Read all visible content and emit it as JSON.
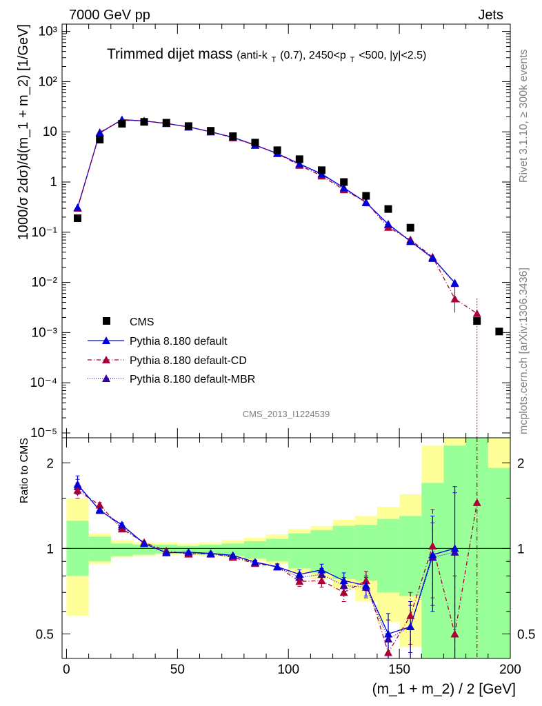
{
  "header": {
    "left": "7000 GeV pp",
    "right": "Jets",
    "side_top": "Rivet 3.1.10, ≥ 300k events",
    "side_bottom": "mcplots.cern.ch [arXiv:1306.3436]",
    "watermark": "CMS_2013_I1224539"
  },
  "colors": {
    "data": "#000000",
    "default": "#0000dd",
    "cd": "#aa0033",
    "mbr": "#3300aa",
    "band_inner": "#99ff99",
    "band_outer": "#ffff99"
  },
  "chart_data": [
    {
      "type": "scatter",
      "title_main": "Trimmed dijet mass",
      "title_sub": "(anti-k",
      "title_sub_T": "T",
      "title_sub_rest": "(0.7), 2450<p",
      "title_sub_T2": "T",
      "title_sub_end": "<500, |y|<2.5)",
      "ylabel": "1000/σ 2dσ)/d(m_1 + m_2) [1/GeV]",
      "yscale": "log",
      "ylim": [
        8e-06,
        1400
      ],
      "xlim": [
        -2,
        200
      ],
      "ytick_labels": [
        "10⁻⁵",
        "10⁻⁴",
        "10⁻³",
        "10⁻²",
        "10⁻¹",
        "1",
        "10",
        "10²",
        "10³"
      ],
      "legend_position": "lower-left",
      "x": [
        5,
        15,
        25,
        35,
        45,
        55,
        65,
        75,
        85,
        95,
        105,
        115,
        125,
        135,
        145,
        155,
        165,
        175,
        185,
        195
      ],
      "series": [
        {
          "name": "CMS",
          "marker": "square",
          "values": [
            0.19,
            7.0,
            14.5,
            15.8,
            15.2,
            13.0,
            10.5,
            8.2,
            6.1,
            4.3,
            2.85,
            1.72,
            1.0,
            0.53,
            0.29,
            0.123,
            null,
            null,
            0.0017,
            0.00105
          ]
        },
        {
          "name": "Pythia 8.180 default",
          "marker": "triangle",
          "line": "solid",
          "values": [
            0.31,
            9.5,
            17.5,
            16.5,
            14.6,
            12.6,
            10.0,
            7.8,
            5.45,
            3.7,
            2.3,
            1.45,
            0.77,
            0.39,
            0.145,
            0.066,
            0.031,
            0.0098,
            null,
            null
          ]
        },
        {
          "name": "Pythia 8.180 default-CD",
          "marker": "triangle",
          "line": "dashdot",
          "values": [
            0.3,
            9.8,
            17.0,
            16.6,
            14.8,
            12.4,
            10.1,
            7.6,
            5.4,
            3.7,
            2.15,
            1.32,
            0.7,
            0.4,
            0.125,
            0.071,
            0.032,
            0.0047,
            0.0024,
            null
          ]
        },
        {
          "name": "Pythia 8.180 default-MBR",
          "marker": "triangle",
          "line": "dotted",
          "values": [
            0.3,
            9.6,
            17.2,
            16.4,
            14.7,
            12.5,
            10.0,
            7.7,
            5.4,
            3.7,
            2.25,
            1.4,
            0.74,
            0.385,
            0.14,
            0.065,
            0.03,
            0.0095,
            null,
            null
          ]
        }
      ]
    },
    {
      "type": "line",
      "ylabel": "Ratio to CMS",
      "xlabel": "(m_1 + m_2) / 2 [GeV]",
      "yscale": "log",
      "ylim": [
        0.41,
        2.45
      ],
      "xlim": [
        -2,
        200
      ],
      "ytick_labels": [
        "0.5",
        "1",
        "2"
      ],
      "xtick_labels": [
        "0",
        "50",
        "100",
        "150",
        "200"
      ],
      "x": [
        5,
        15,
        25,
        35,
        45,
        55,
        65,
        75,
        85,
        95,
        105,
        115,
        125,
        135,
        145,
        155,
        165,
        175,
        185,
        195
      ],
      "band_inner": [
        [
          0.8,
          1.25
        ],
        [
          0.9,
          1.1
        ],
        [
          0.94,
          1.04
        ],
        [
          0.95,
          1.03
        ],
        [
          0.96,
          1.03
        ],
        [
          0.96,
          1.02
        ],
        [
          0.95,
          1.03
        ],
        [
          0.94,
          1.04
        ],
        [
          0.92,
          1.06
        ],
        [
          0.9,
          1.08
        ],
        [
          0.85,
          1.13
        ],
        [
          0.82,
          1.16
        ],
        [
          0.78,
          1.2
        ],
        [
          0.77,
          1.21
        ],
        [
          0.7,
          1.27
        ],
        [
          0.68,
          1.3
        ],
        [
          0.0,
          1.7
        ],
        [
          0.0,
          2.3
        ],
        [
          0.0,
          2.6
        ],
        [
          0.0,
          1.92
        ]
      ],
      "band_outer": [
        [
          0.58,
          1.5
        ],
        [
          0.88,
          1.13
        ],
        [
          0.93,
          1.07
        ],
        [
          0.94,
          1.05
        ],
        [
          0.95,
          1.05
        ],
        [
          0.95,
          1.04
        ],
        [
          0.94,
          1.05
        ],
        [
          0.93,
          1.07
        ],
        [
          0.9,
          1.09
        ],
        [
          0.88,
          1.12
        ],
        [
          0.82,
          1.17
        ],
        [
          0.78,
          1.2
        ],
        [
          0.72,
          1.26
        ],
        [
          0.65,
          1.3
        ],
        [
          0.55,
          1.4
        ],
        [
          0.45,
          1.55
        ],
        [
          0.6,
          2.3
        ],
        [
          0.4,
          2.7
        ],
        [
          0.0,
          3.0
        ],
        [
          0.0,
          3.0
        ]
      ],
      "series": [
        {
          "name": "Pythia 8.180 default",
          "values": [
            1.68,
            1.36,
            1.21,
            1.04,
            0.965,
            0.97,
            0.96,
            0.945,
            0.895,
            0.862,
            0.81,
            0.84,
            0.77,
            0.74,
            0.5,
            0.53,
            0.95,
            1.0,
            null,
            null
          ],
          "errors": [
            0.12,
            0.03,
            0.02,
            0.01,
            0.01,
            0.01,
            0.01,
            0.01,
            0.015,
            0.02,
            0.03,
            0.04,
            0.05,
            0.06,
            0.09,
            0.12,
            0.35,
            0.65,
            null,
            null
          ]
        },
        {
          "name": "Pythia 8.180 default-CD",
          "values": [
            1.6,
            1.42,
            1.17,
            1.05,
            0.98,
            0.955,
            0.96,
            0.93,
            0.885,
            0.862,
            0.765,
            0.77,
            0.7,
            0.77,
            0.43,
            0.58,
            1.02,
            0.5,
            1.45,
            null
          ],
          "errors": [
            0.1,
            0.03,
            0.02,
            0.01,
            0.01,
            0.01,
            0.01,
            0.01,
            0.015,
            0.02,
            0.03,
            0.04,
            0.05,
            0.06,
            0.06,
            0.12,
            0.35,
            0.3,
            2.0,
            null
          ]
        },
        {
          "name": "Pythia 8.180 default-MBR",
          "values": [
            1.65,
            1.37,
            1.19,
            1.04,
            0.97,
            0.96,
            0.955,
            0.94,
            0.89,
            0.86,
            0.79,
            0.81,
            0.74,
            0.73,
            0.48,
            0.53,
            0.93,
            0.97,
            null,
            null
          ],
          "errors": [
            0.1,
            0.03,
            0.02,
            0.01,
            0.01,
            0.01,
            0.01,
            0.01,
            0.015,
            0.02,
            0.03,
            0.04,
            0.05,
            0.06,
            0.08,
            0.1,
            0.3,
            0.6,
            null,
            null
          ]
        }
      ]
    }
  ]
}
